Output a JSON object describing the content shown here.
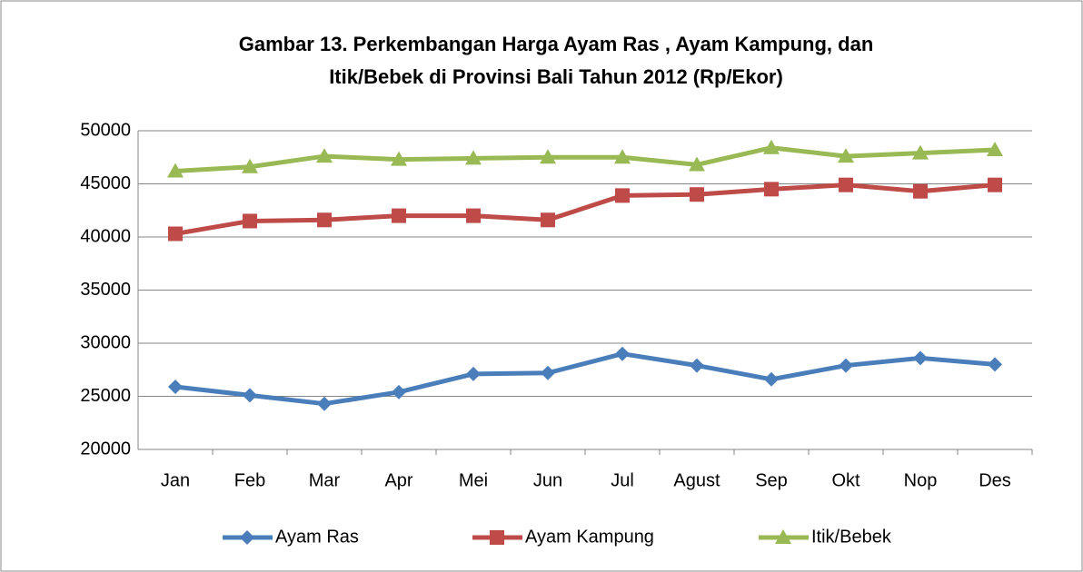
{
  "chart_data": {
    "type": "line",
    "title": [
      "Gambar 13. Perkembangan Harga Ayam Ras , Ayam Kampung, dan",
      "Itik/Bebek  di Provinsi Bali Tahun 2012 (Rp/Ekor)"
    ],
    "categories": [
      "Jan",
      "Feb",
      "Mar",
      "Apr",
      "Mei",
      "Jun",
      "Jul",
      "Agust",
      "Sep",
      "Okt",
      "Nop",
      "Des"
    ],
    "series": [
      {
        "name": "Ayam Ras",
        "color": "#4a7ebb",
        "marker": "diamond",
        "values": [
          25900,
          25100,
          24300,
          25400,
          27100,
          27200,
          29000,
          27900,
          26600,
          27900,
          28600,
          28000
        ]
      },
      {
        "name": "Ayam Kampung",
        "color": "#be4b48",
        "marker": "square",
        "values": [
          40300,
          41500,
          41600,
          42000,
          42000,
          41600,
          43900,
          44000,
          44500,
          44900,
          44300,
          44900
        ]
      },
      {
        "name": "Itik/Bebek",
        "color": "#98b954",
        "marker": "triangle",
        "values": [
          46200,
          46600,
          47600,
          47300,
          47400,
          47500,
          47500,
          46800,
          48400,
          47600,
          47900,
          48200
        ]
      }
    ],
    "ylim": [
      20000,
      50000
    ],
    "yticks": [
      20000,
      25000,
      30000,
      35000,
      40000,
      45000,
      50000
    ],
    "grid": true,
    "legend": "bottom"
  }
}
